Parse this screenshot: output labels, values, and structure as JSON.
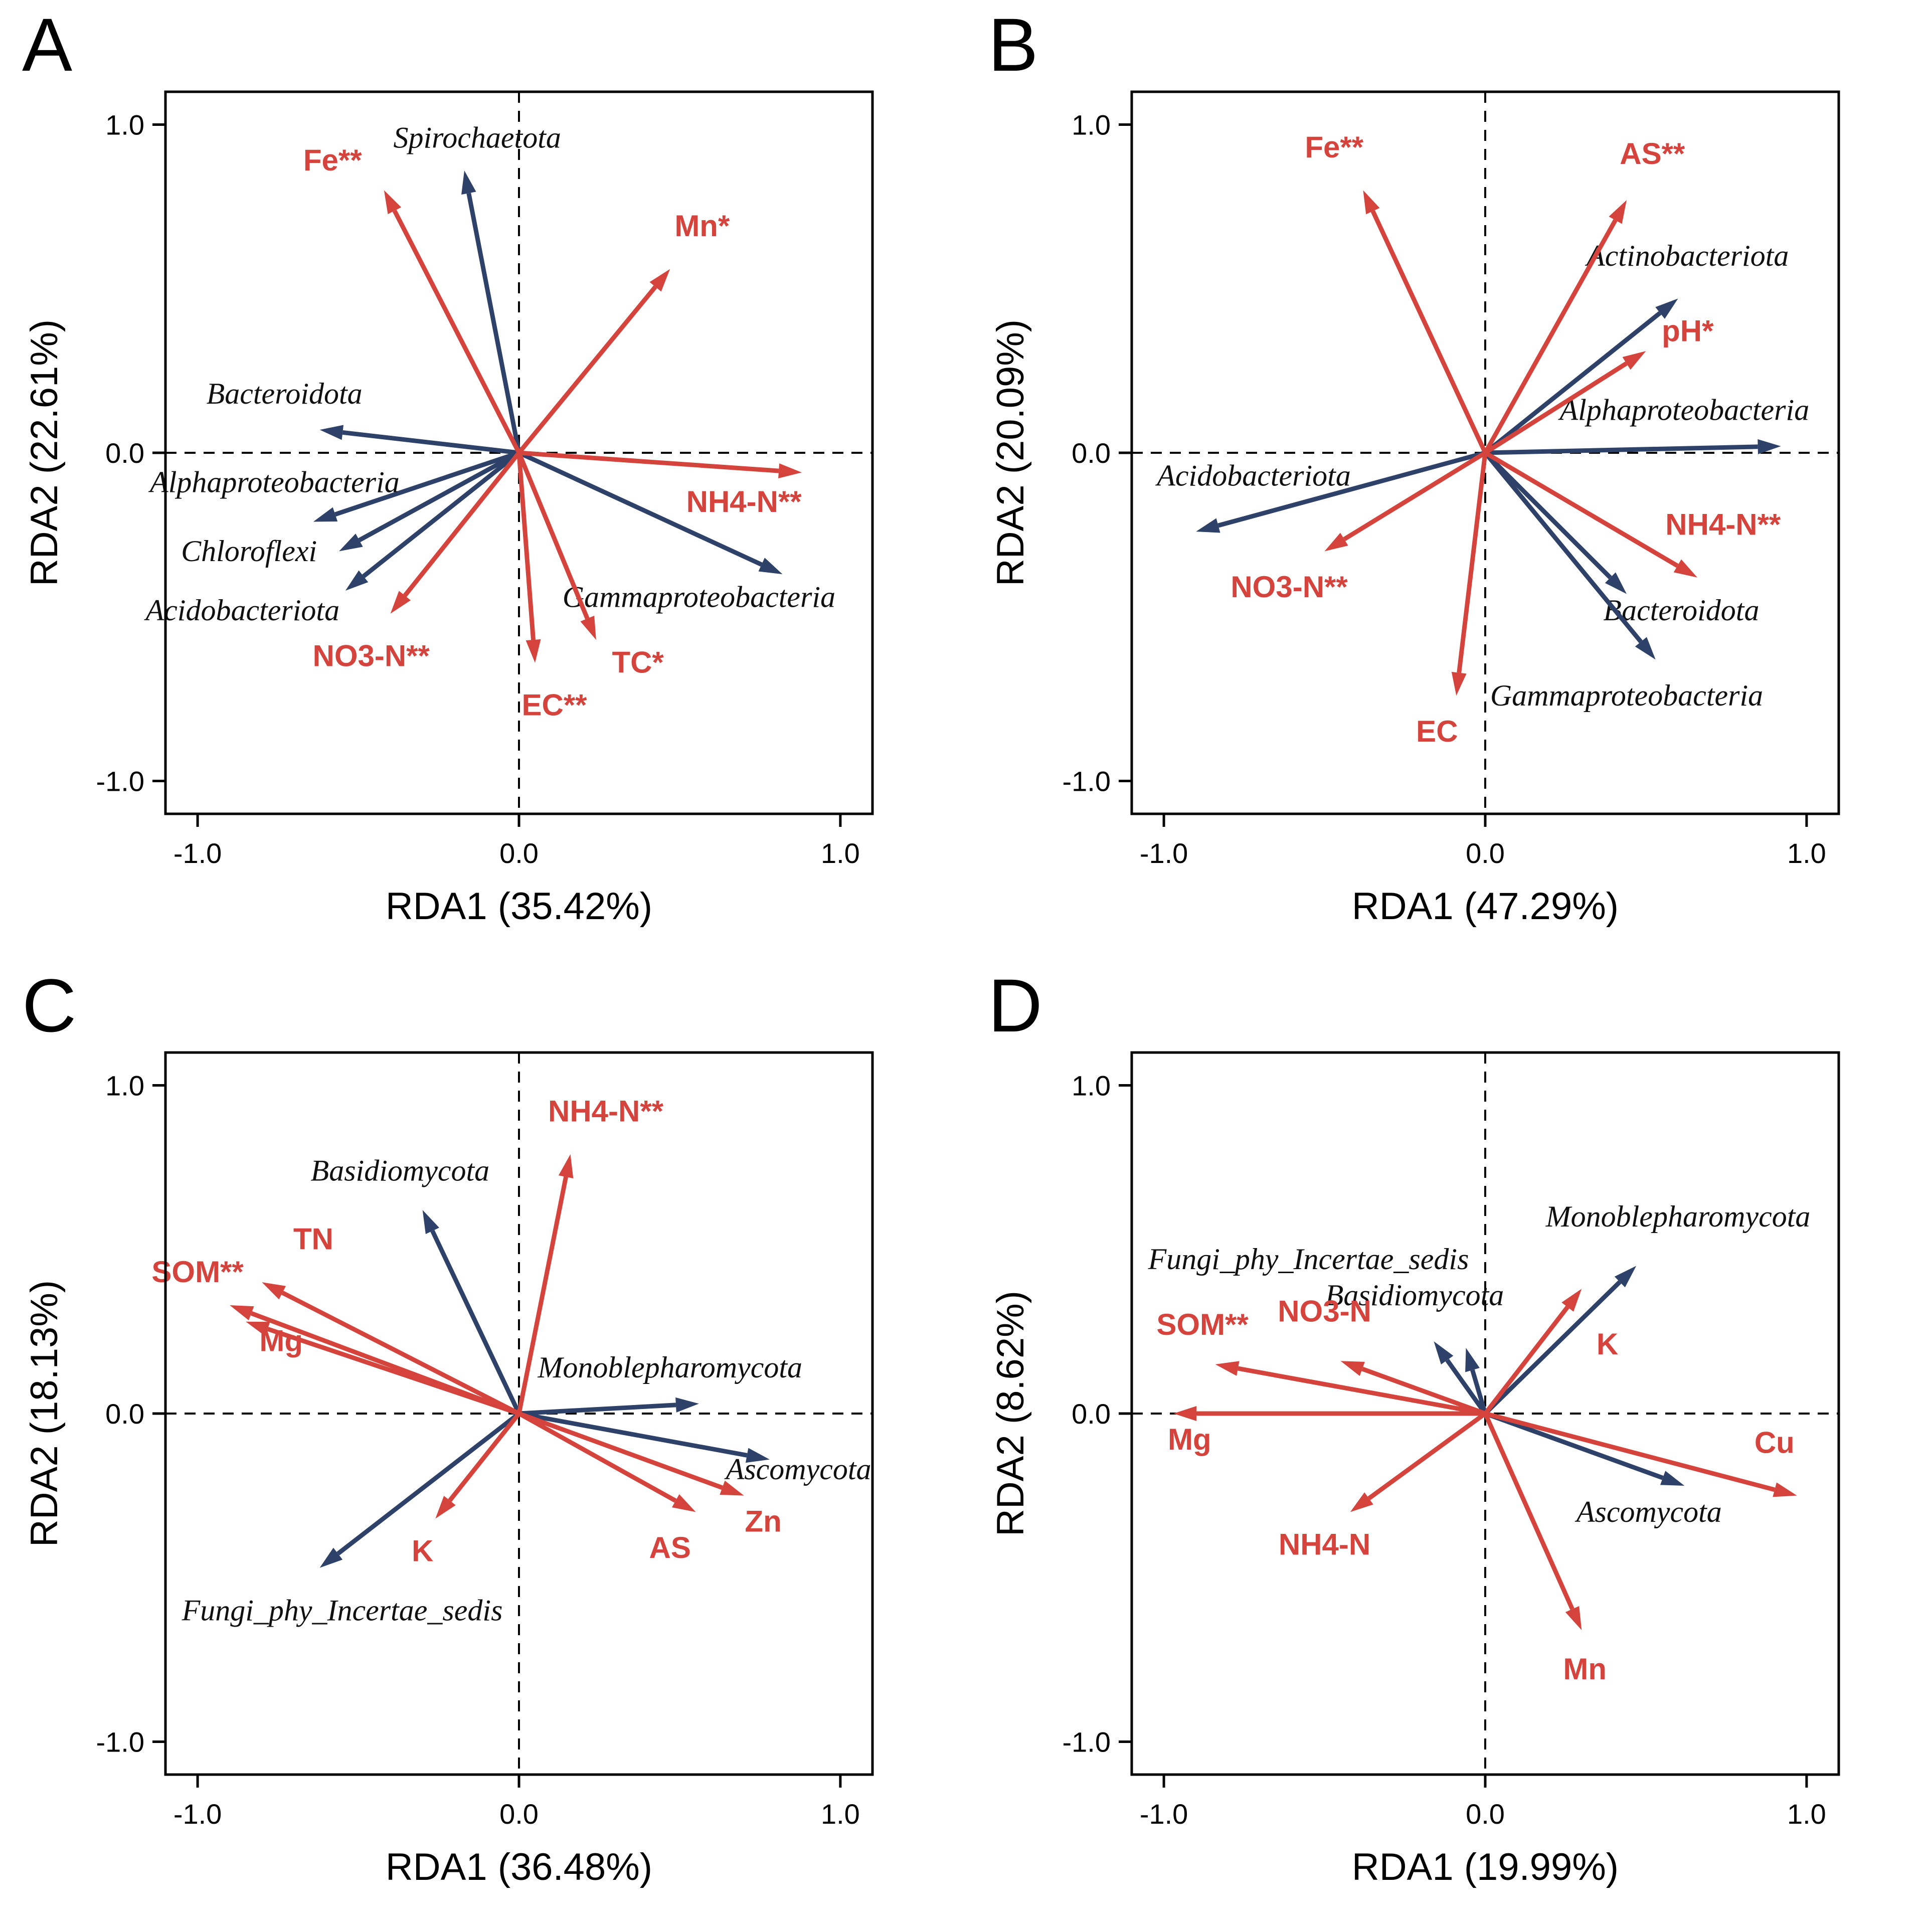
{
  "colors": {
    "env_arrow": "#d5433d",
    "taxa_arrow": "#2e4169",
    "taxa_label": "#101010",
    "axis": "#000000",
    "background": "#ffffff"
  },
  "chart_data": [
    {
      "type": "scatter",
      "subtype": "rda_biplot_vectors",
      "panel_label": "A",
      "xlabel": "RDA1 (35.42%)",
      "ylabel": "RDA2 (22.61%)",
      "xlim": [
        -1.1,
        1.1
      ],
      "ylim": [
        -1.1,
        1.1
      ],
      "grid": false,
      "legend": "none",
      "xticks": [
        {
          "v": -1.0,
          "label": "-1.0"
        },
        {
          "v": 0.0,
          "label": "0.0"
        },
        {
          "v": 1.0,
          "label": "1.0"
        }
      ],
      "yticks": [
        {
          "v": -1.0,
          "label": "-1.0"
        },
        {
          "v": 0.0,
          "label": "0.0"
        },
        {
          "v": 1.0,
          "label": "1.0"
        }
      ],
      "env_vectors": [
        {
          "label": "Fe**",
          "x": -0.42,
          "y": 0.8,
          "lx": -0.58,
          "ly": 0.86
        },
        {
          "label": "Mn*",
          "x": 0.47,
          "y": 0.56,
          "lx": 0.57,
          "ly": 0.66
        },
        {
          "label": "NH4-N**",
          "x": 0.88,
          "y": -0.06,
          "lx": 0.7,
          "ly": -0.18
        },
        {
          "label": "TC*",
          "x": 0.24,
          "y": -0.57,
          "lx": 0.37,
          "ly": -0.67
        },
        {
          "label": "EC**",
          "x": 0.05,
          "y": -0.64,
          "lx": 0.11,
          "ly": -0.8
        },
        {
          "label": "NO3-N**",
          "x": -0.4,
          "y": -0.49,
          "lx": -0.46,
          "ly": -0.65
        }
      ],
      "taxa_vectors": [
        {
          "label": "Spirochaetota",
          "x": -0.17,
          "y": 0.86,
          "lx": -0.13,
          "ly": 0.93
        },
        {
          "label": "Bacteroidota",
          "x": -0.62,
          "y": 0.07,
          "lx": -0.73,
          "ly": 0.15
        },
        {
          "label": "Alphaproteobacteria",
          "x": -0.64,
          "y": -0.21,
          "lx": -0.76,
          "ly": -0.12
        },
        {
          "label": "Chloroflexi",
          "x": -0.56,
          "y": -0.3,
          "lx": -0.84,
          "ly": -0.33
        },
        {
          "label": "Acidobacteriota",
          "x": -0.54,
          "y": -0.42,
          "lx": -0.86,
          "ly": -0.51
        },
        {
          "label": "Gammaproteobacteria",
          "x": 0.82,
          "y": -0.37,
          "lx": 0.56,
          "ly": -0.47
        }
      ]
    },
    {
      "type": "scatter",
      "subtype": "rda_biplot_vectors",
      "panel_label": "B",
      "xlabel": "RDA1 (47.29%)",
      "ylabel": "RDA2 (20.09%)",
      "xlim": [
        -1.1,
        1.1
      ],
      "ylim": [
        -1.1,
        1.1
      ],
      "grid": false,
      "legend": "none",
      "xticks": [
        {
          "v": -1.0,
          "label": "-1.0"
        },
        {
          "v": 0.0,
          "label": "0.0"
        },
        {
          "v": 1.0,
          "label": "1.0"
        }
      ],
      "yticks": [
        {
          "v": -1.0,
          "label": "-1.0"
        },
        {
          "v": 0.0,
          "label": "0.0"
        },
        {
          "v": 1.0,
          "label": "1.0"
        }
      ],
      "env_vectors": [
        {
          "label": "Fe**",
          "x": -0.38,
          "y": 0.8,
          "lx": -0.47,
          "ly": 0.9
        },
        {
          "label": "AS**",
          "x": 0.44,
          "y": 0.77,
          "lx": 0.52,
          "ly": 0.88
        },
        {
          "label": "pH*",
          "x": 0.5,
          "y": 0.31,
          "lx": 0.63,
          "ly": 0.34
        },
        {
          "label": "NH4-N**",
          "x": 0.66,
          "y": -0.38,
          "lx": 0.74,
          "ly": -0.25
        },
        {
          "label": "NO3-N**",
          "x": -0.5,
          "y": -0.3,
          "lx": -0.61,
          "ly": -0.44
        },
        {
          "label": "EC",
          "x": -0.09,
          "y": -0.74,
          "lx": -0.15,
          "ly": -0.88
        }
      ],
      "taxa_vectors": [
        {
          "label": "Actinobacteriota",
          "x": 0.6,
          "y": 0.47,
          "lx": 0.63,
          "ly": 0.57
        },
        {
          "label": "Alphaproteobacteria",
          "x": 0.92,
          "y": 0.02,
          "lx": 0.62,
          "ly": 0.1
        },
        {
          "label": "Acidobacteriota",
          "x": -0.9,
          "y": -0.24,
          "lx": -0.72,
          "ly": -0.1
        },
        {
          "label": "Bacteroidota",
          "x": 0.44,
          "y": -0.43,
          "lx": 0.61,
          "ly": -0.51
        },
        {
          "label": "Gammaproteobacteria",
          "x": 0.53,
          "y": -0.63,
          "lx": 0.44,
          "ly": -0.77
        }
      ]
    },
    {
      "type": "scatter",
      "subtype": "rda_biplot_vectors",
      "panel_label": "C",
      "xlabel": "RDA1 (36.48%)",
      "ylabel": "RDA2 (18.13%)",
      "xlim": [
        -1.1,
        1.1
      ],
      "ylim": [
        -1.1,
        1.1
      ],
      "grid": false,
      "legend": "none",
      "xticks": [
        {
          "v": -1.0,
          "label": "-1.0"
        },
        {
          "v": 0.0,
          "label": "0.0"
        },
        {
          "v": 1.0,
          "label": "1.0"
        }
      ],
      "yticks": [
        {
          "v": -1.0,
          "label": "-1.0"
        },
        {
          "v": 0.0,
          "label": "0.0"
        },
        {
          "v": 1.0,
          "label": "1.0"
        }
      ],
      "env_vectors": [
        {
          "label": "NH4-N**",
          "x": 0.16,
          "y": 0.79,
          "lx": 0.27,
          "ly": 0.89
        },
        {
          "label": "TN",
          "x": -0.8,
          "y": 0.4,
          "lx": -0.64,
          "ly": 0.5
        },
        {
          "label": "SOM**",
          "x": -0.9,
          "y": 0.33,
          "lx": -1.0,
          "ly": 0.4
        },
        {
          "label": "Mg",
          "x": -0.85,
          "y": 0.28,
          "lx": -0.74,
          "ly": 0.19
        },
        {
          "label": "K",
          "x": -0.26,
          "y": -0.32,
          "lx": -0.3,
          "ly": -0.45
        },
        {
          "label": "AS",
          "x": 0.55,
          "y": -0.3,
          "lx": 0.47,
          "ly": -0.44
        },
        {
          "label": "Zn",
          "x": 0.7,
          "y": -0.25,
          "lx": 0.76,
          "ly": -0.36
        }
      ],
      "taxa_vectors": [
        {
          "label": "Basidiomycota",
          "x": -0.3,
          "y": 0.62,
          "lx": -0.37,
          "ly": 0.71
        },
        {
          "label": "Monoblepharomycota",
          "x": 0.56,
          "y": 0.03,
          "lx": 0.47,
          "ly": 0.11
        },
        {
          "label": "Ascomycota",
          "x": 0.78,
          "y": -0.14,
          "lx": 0.87,
          "ly": -0.2
        },
        {
          "label": "Fungi_phy_Incertae_sedis",
          "x": -0.62,
          "y": -0.47,
          "lx": -0.55,
          "ly": -0.63
        }
      ]
    },
    {
      "type": "scatter",
      "subtype": "rda_biplot_vectors",
      "panel_label": "D",
      "xlabel": "RDA1 (19.99%)",
      "ylabel": "RDA2 (8.62%)",
      "xlim": [
        -1.1,
        1.1
      ],
      "ylim": [
        -1.1,
        1.1
      ],
      "grid": false,
      "legend": "none",
      "xticks": [
        {
          "v": -1.0,
          "label": "-1.0"
        },
        {
          "v": 0.0,
          "label": "0.0"
        },
        {
          "v": 1.0,
          "label": "1.0"
        }
      ],
      "yticks": [
        {
          "v": -1.0,
          "label": "-1.0"
        },
        {
          "v": 0.0,
          "label": "0.0"
        },
        {
          "v": 1.0,
          "label": "1.0"
        }
      ],
      "env_vectors": [
        {
          "label": "SOM**",
          "x": -0.84,
          "y": 0.15,
          "lx": -0.88,
          "ly": 0.24
        },
        {
          "label": "NO3-N",
          "x": -0.45,
          "y": 0.16,
          "lx": -0.5,
          "ly": 0.28
        },
        {
          "label": "Mg",
          "x": -0.97,
          "y": 0.0,
          "lx": -0.92,
          "ly": -0.11
        },
        {
          "label": "NH4-N",
          "x": -0.42,
          "y": -0.3,
          "lx": -0.5,
          "ly": -0.43
        },
        {
          "label": "K",
          "x": 0.3,
          "y": 0.38,
          "lx": 0.38,
          "ly": 0.18
        },
        {
          "label": "Cu",
          "x": 0.97,
          "y": -0.25,
          "lx": 0.9,
          "ly": -0.12
        },
        {
          "label": "Mn",
          "x": 0.3,
          "y": -0.66,
          "lx": 0.31,
          "ly": -0.81
        }
      ],
      "taxa_vectors": [
        {
          "label": "Monoblepharomycota",
          "x": 0.47,
          "y": 0.45,
          "lx": 0.6,
          "ly": 0.57
        },
        {
          "label": "Fungi_phy_Incertae_sedis",
          "x": -0.16,
          "y": 0.22,
          "lx": -0.55,
          "ly": 0.44
        },
        {
          "label": "Basidiomycota",
          "x": -0.06,
          "y": 0.2,
          "lx": -0.22,
          "ly": 0.33
        },
        {
          "label": "Ascomycota",
          "x": 0.62,
          "y": -0.22,
          "lx": 0.51,
          "ly": -0.33
        }
      ]
    }
  ]
}
